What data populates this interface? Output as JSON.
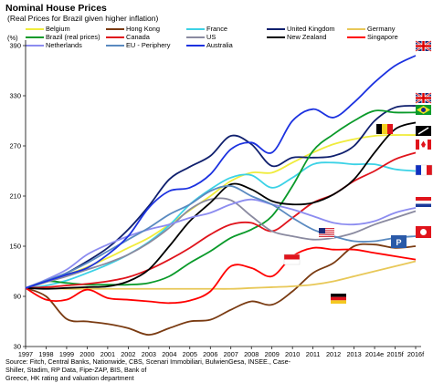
{
  "chart_data": {
    "type": "line",
    "title": "Nominal House Prices",
    "subtitle": "(Real Prices for Brazil given higher inflation)",
    "y_unit_label": "(%)",
    "ylim": [
      30,
      390
    ],
    "y_ticks": [
      30,
      90,
      150,
      210,
      270,
      330,
      390
    ],
    "x_labels": [
      "1997",
      "1998",
      "1999",
      "2000",
      "2001",
      "2002",
      "2003",
      "2004",
      "2005",
      "2006",
      "2007",
      "2008",
      "2009",
      "2010",
      "2011",
      "2012",
      "2013",
      "2014e",
      "2015f",
      "2016f"
    ],
    "legend_columns": 5,
    "source_lines": [
      "Source: Fitch, Central Banks, Nationwide, CBS, Scenari Immobiliari, BulwienGesa, INSEE., Case-Shiller, Stadim, RP Data, Fipe-ZAP, BIS, Bank of",
      "Greece, HK rating and valuation department"
    ],
    "series": [
      {
        "name": "Belgium",
        "color": "#f0ec3c",
        "values": [
          100,
          107,
          116,
          125,
          136,
          148,
          160,
          176,
          193,
          210,
          228,
          238,
          238,
          250,
          262,
          272,
          278,
          282,
          283,
          283
        ]
      },
      {
        "name": "Hong Kong",
        "color": "#7a3b12",
        "values": [
          100,
          90,
          63,
          60,
          57,
          52,
          44,
          52,
          60,
          62,
          74,
          84,
          80,
          96,
          118,
          130,
          150,
          152,
          148,
          150
        ]
      },
      {
        "name": "France",
        "color": "#3cd2e6",
        "values": [
          100,
          103,
          109,
          118,
          128,
          140,
          155,
          175,
          200,
          218,
          232,
          235,
          220,
          232,
          248,
          250,
          248,
          248,
          242,
          240
        ]
      },
      {
        "name": "United Kingdom",
        "color": "#10206e",
        "values": [
          100,
          108,
          118,
          132,
          148,
          170,
          198,
          230,
          245,
          258,
          282,
          272,
          246,
          256,
          256,
          258,
          270,
          300,
          316,
          318
        ]
      },
      {
        "name": "Germany",
        "color": "#e8c858",
        "values": [
          100,
          100,
          99,
          99,
          99,
          99,
          99,
          99,
          99,
          99,
          99,
          100,
          101,
          102,
          104,
          108,
          114,
          120,
          126,
          132
        ]
      },
      {
        "name": "Brazil (real prices)",
        "color": "#0a9a2a",
        "values": [
          100,
          108,
          106,
          104,
          104,
          104,
          106,
          114,
          130,
          144,
          160,
          170,
          186,
          222,
          264,
          284,
          300,
          312,
          310,
          310
        ]
      },
      {
        "name": "Canada",
        "color": "#e0141c",
        "values": [
          100,
          101,
          103,
          105,
          108,
          113,
          122,
          134,
          148,
          164,
          176,
          178,
          168,
          184,
          202,
          212,
          228,
          240,
          254,
          262
        ]
      },
      {
        "name": "US",
        "color": "#8a8aa0",
        "values": [
          100,
          107,
          114,
          122,
          130,
          140,
          154,
          172,
          194,
          206,
          205,
          186,
          168,
          162,
          158,
          160,
          166,
          176,
          184,
          192
        ]
      },
      {
        "name": "New Zealand",
        "color": "#000000",
        "values": [
          100,
          99,
          100,
          101,
          102,
          108,
          122,
          150,
          180,
          202,
          224,
          218,
          204,
          200,
          202,
          212,
          230,
          262,
          290,
          298
        ]
      },
      {
        "name": "Singapore",
        "color": "#ff0000",
        "values": [
          100,
          86,
          86,
          98,
          88,
          86,
          84,
          82,
          85,
          96,
          126,
          124,
          114,
          138,
          148,
          146,
          146,
          142,
          138,
          134
        ]
      },
      {
        "name": "Netherlands",
        "color": "#8c8cf0",
        "values": [
          100,
          110,
          122,
          140,
          152,
          162,
          170,
          176,
          184,
          190,
          200,
          206,
          200,
          194,
          186,
          178,
          176,
          180,
          190,
          196
        ]
      },
      {
        "name": "EU - Periphery",
        "color": "#5a8ac0",
        "values": [
          100,
          109,
          118,
          130,
          144,
          158,
          172,
          188,
          200,
          216,
          222,
          210,
          200,
          184,
          170,
          162,
          156,
          156,
          160,
          162
        ]
      },
      {
        "name": "Australia",
        "color": "#1c32e0",
        "values": [
          100,
          108,
          116,
          124,
          140,
          162,
          196,
          216,
          220,
          236,
          266,
          274,
          262,
          300,
          314,
          304,
          322,
          346,
          366,
          378
        ]
      }
    ]
  },
  "flag_icons": [
    "australia-flag-icon",
    "uk-flag-icon",
    "brazil-flag-icon",
    "belgium-flag-icon",
    "new-zealand-flag-icon",
    "canada-flag-icon",
    "france-flag-icon",
    "netherlands-flag-icon",
    "us-flag-icon",
    "portugal-flag-icon",
    "hong-kong-flag-icon",
    "singapore-flag-icon",
    "germany-flag-icon"
  ]
}
